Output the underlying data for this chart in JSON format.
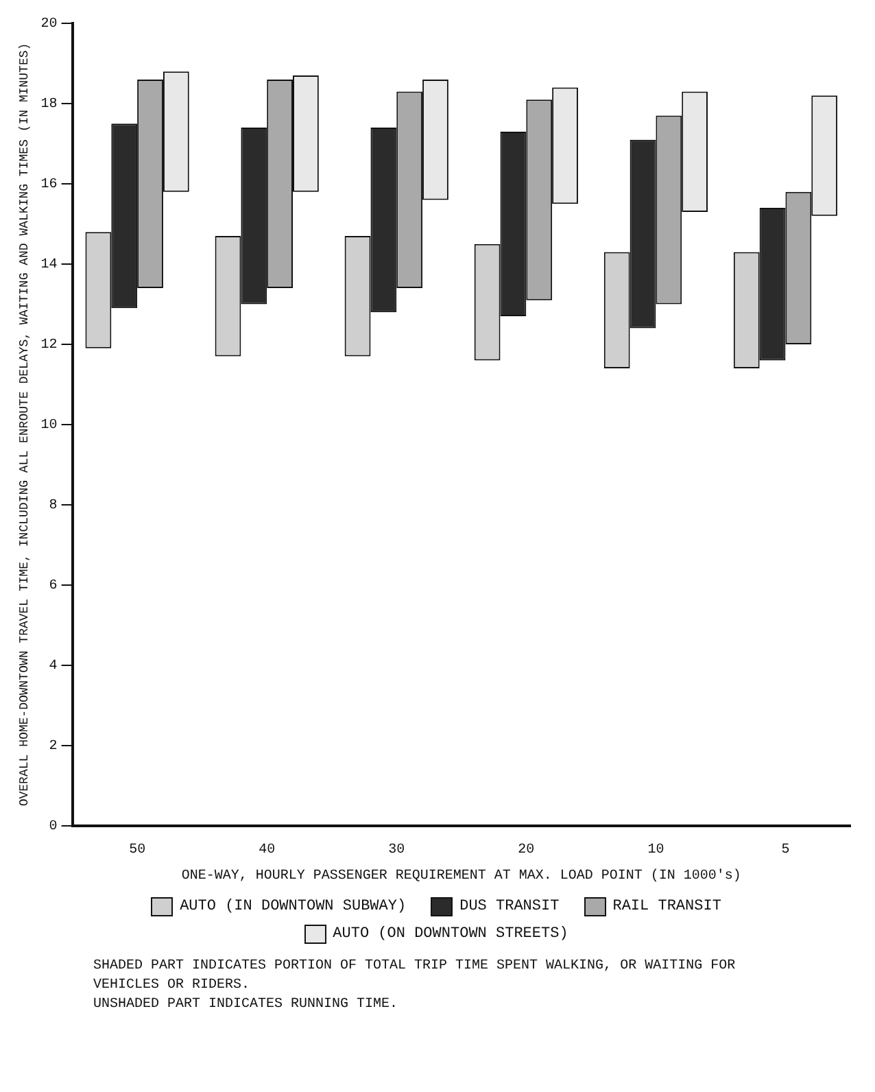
{
  "chart_data": {
    "type": "bar",
    "xlabel": "ONE-WAY, HOURLY PASSENGER REQUIREMENT AT MAX. LOAD POINT (IN 1000's)",
    "ylabel": "OVERALL HOME-DOWNTOWN TRAVEL TIME, INCLUDING ALL ENROUTE DELAYS, WAITING AND WALKING TIMES (IN MINUTES)",
    "categories": [
      "50",
      "40",
      "30",
      "20",
      "10",
      "5"
    ],
    "series": [
      {
        "name": "AUTO (IN DOWNTOWN SUBWAY)",
        "color": "#cfcfcf",
        "base": [
          11.9,
          11.7,
          11.7,
          11.6,
          11.4,
          11.4
        ],
        "values": [
          2.9,
          3.0,
          3.0,
          2.9,
          2.9,
          2.9
        ]
      },
      {
        "name": "DUS TRANSIT",
        "color": "#2b2b2b",
        "base": [
          12.9,
          13.0,
          12.8,
          12.7,
          12.4,
          11.6
        ],
        "values": [
          4.6,
          4.4,
          4.6,
          4.6,
          4.7,
          3.8
        ]
      },
      {
        "name": "RAIL TRANSIT",
        "color": "#a9a9a9",
        "base": [
          13.4,
          13.4,
          13.4,
          13.1,
          13.0,
          12.0
        ],
        "values": [
          5.2,
          5.2,
          4.9,
          5.0,
          4.7,
          3.8
        ]
      },
      {
        "name": "AUTO (ON DOWNTOWN STREETS)",
        "color": "#e8e8e8",
        "base": [
          15.8,
          15.8,
          15.6,
          15.5,
          15.3,
          15.2
        ],
        "values": [
          3.0,
          2.9,
          3.0,
          2.9,
          3.0,
          3.0
        ]
      }
    ],
    "ylim": [
      0,
      20
    ],
    "yticks": [
      0,
      2,
      4,
      6,
      8,
      10,
      12,
      14,
      16,
      18,
      20
    ],
    "grid": false,
    "legend": "bottom",
    "annotations": [
      "SHADED PART INDICATES PORTION OF TOTAL TRIP TIME SPENT WALKING, OR WAITING FOR VEHICLES OR RIDERS.",
      "UNSHADED PART INDICATES RUNNING TIME."
    ]
  }
}
